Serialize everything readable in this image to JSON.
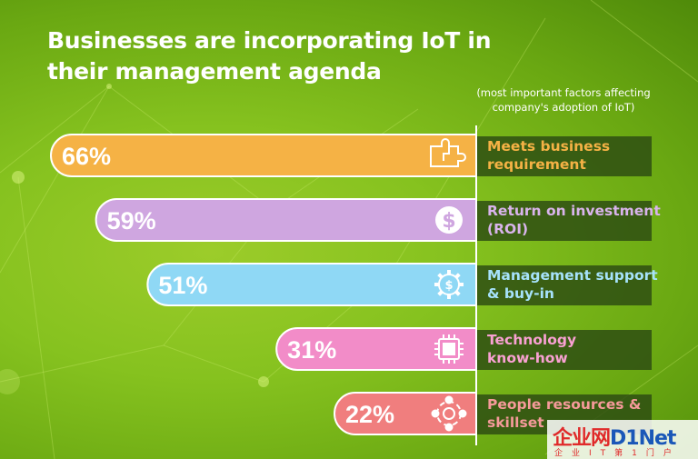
{
  "chart_data": {
    "type": "bar",
    "orientation": "horizontal",
    "title": "Businesses are incorporating IoT in their management agenda",
    "subtitle": "(most important factors affecting company's adoption of IoT)",
    "categories": [
      "Meets business requirement",
      "Return on investment (ROI)",
      "Management support & buy-in",
      "Technology know-how",
      "People resources & skillset"
    ],
    "values": [
      66,
      59,
      51,
      31,
      22
    ],
    "value_labels": [
      "66%",
      "59%",
      "51%",
      "31%",
      "22%"
    ],
    "unit": "%",
    "bar_colors": [
      "#f5b245",
      "#cfa6e0",
      "#8fd8f5",
      "#f28cc8",
      "#f07e7e"
    ],
    "label_colors": [
      "#f5b245",
      "#d9b4ec",
      "#a6e2fb",
      "#f9a1d3",
      "#f59a9a"
    ],
    "icons": [
      "puzzle-icon",
      "dollar-icon",
      "gear-dollar-icon",
      "chip-icon",
      "people-network-icon"
    ],
    "xlim": [
      0,
      100
    ],
    "grid": false,
    "legend": "none"
  },
  "watermark": {
    "main_red": "企业网",
    "main_blue": "D1Net",
    "sub": "企业IT第1门户"
  }
}
